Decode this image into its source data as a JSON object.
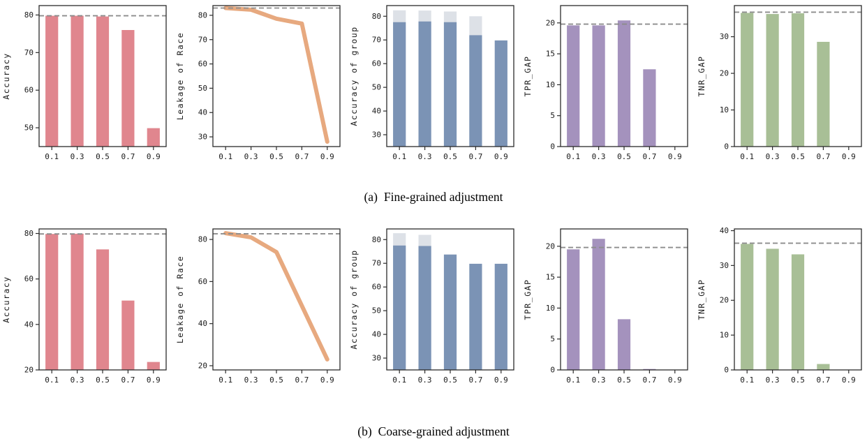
{
  "figure": {
    "background": "#ffffff",
    "spine_color": "#2b2b2b",
    "sections": [
      {
        "id": "a",
        "caption_label": "(a)",
        "caption_text": "Fine-grained adjustment"
      },
      {
        "id": "b",
        "caption_label": "(b)",
        "caption_text": "Coarse-grained adjustment"
      }
    ]
  },
  "chart_data": [
    {
      "id": "a-accuracy",
      "section": "a",
      "type": "bar",
      "title": "",
      "xlabel": "",
      "ylabel": "Accuracy",
      "categories": [
        "0.1",
        "0.3",
        "0.5",
        "0.7",
        "0.9"
      ],
      "values": [
        79.8,
        79.8,
        79.6,
        76.0,
        49.9
      ],
      "bar_color": "#e0868e",
      "ylim": [
        45,
        82.5
      ],
      "yticks": [
        50,
        60,
        70,
        80
      ],
      "ref_line": 79.8,
      "ref_line_color": "#8c8c8c",
      "grid": false,
      "legend": null
    },
    {
      "id": "a-leakage-of-race",
      "section": "a",
      "type": "line",
      "title": "",
      "xlabel": "",
      "ylabel": "Leakage of Race",
      "categories": [
        "0.1",
        "0.3",
        "0.5",
        "0.7",
        "0.9"
      ],
      "values": [
        83.0,
        82.3,
        78.6,
        76.6,
        28.0
      ],
      "line_color": "#e7a97f",
      "line_width": 6,
      "ylim": [
        26,
        84
      ],
      "yticks": [
        30,
        40,
        50,
        60,
        70,
        80
      ],
      "ref_line": 83.0,
      "ref_line_color": "#8c8c8c",
      "grid": false,
      "legend": null
    },
    {
      "id": "a-accuracy-of-group",
      "section": "a",
      "type": "bar",
      "title": "",
      "xlabel": "",
      "ylabel": "Accuracy of group",
      "categories": [
        "0.1",
        "0.3",
        "0.5",
        "0.7",
        "0.9"
      ],
      "series": [
        {
          "name": "series-1",
          "color": "#dde1e7",
          "values": [
            82.5,
            82.4,
            82.0,
            80.0,
            null
          ]
        },
        {
          "name": "series-2",
          "color": "#7b93b5",
          "values": [
            77.5,
            77.8,
            77.5,
            72.0,
            69.8
          ]
        }
      ],
      "ylim": [
        25,
        84.5
      ],
      "yticks": [
        30,
        40,
        50,
        60,
        70,
        80
      ],
      "ref_line": null,
      "grid": false,
      "legend": null
    },
    {
      "id": "a-tpr-gap",
      "section": "a",
      "type": "bar",
      "title": "",
      "xlabel": "",
      "ylabel": "TPR_GAP",
      "categories": [
        "0.1",
        "0.3",
        "0.5",
        "0.7",
        "0.9"
      ],
      "values": [
        19.6,
        19.6,
        20.4,
        12.5,
        0
      ],
      "bar_color": "#a492bd",
      "ylim": [
        0,
        22.8
      ],
      "yticks": [
        0,
        5,
        10,
        15,
        20
      ],
      "ref_line": 19.8,
      "ref_line_color": "#8c8c8c",
      "grid": false,
      "legend": null
    },
    {
      "id": "a-tnr-gap",
      "section": "a",
      "type": "bar",
      "title": "",
      "xlabel": "",
      "ylabel": "TNR_GAP",
      "categories": [
        "0.1",
        "0.3",
        "0.5",
        "0.7",
        "0.9"
      ],
      "values": [
        36.5,
        36.2,
        36.4,
        28.6,
        0
      ],
      "bar_color": "#a8bf96",
      "ylim": [
        0,
        38.5
      ],
      "yticks": [
        0,
        10,
        20,
        30
      ],
      "ref_line": 36.7,
      "ref_line_color": "#8c8c8c",
      "grid": false,
      "legend": null
    },
    {
      "id": "b-accuracy",
      "section": "b",
      "type": "bar",
      "title": "",
      "xlabel": "",
      "ylabel": "Accuracy",
      "categories": [
        "0.1",
        "0.3",
        "0.5",
        "0.7",
        "0.9"
      ],
      "values": [
        79.8,
        79.9,
        73.0,
        50.5,
        23.5
      ],
      "bar_color": "#e0868e",
      "ylim": [
        20,
        82
      ],
      "yticks": [
        20,
        40,
        60,
        80
      ],
      "ref_line": 79.8,
      "ref_line_color": "#8c8c8c",
      "grid": false,
      "legend": null
    },
    {
      "id": "b-leakage-of-race",
      "section": "b",
      "type": "line",
      "title": "",
      "xlabel": "",
      "ylabel": "Leakage of Race",
      "categories": [
        "0.1",
        "0.3",
        "0.5",
        "0.7",
        "0.9"
      ],
      "values": [
        83.0,
        81.0,
        74.0,
        48.5,
        23.0
      ],
      "line_color": "#e7a97f",
      "line_width": 6,
      "ylim": [
        18,
        85
      ],
      "yticks": [
        20,
        40,
        60,
        80
      ],
      "ref_line": 82.7,
      "ref_line_color": "#8c8c8c",
      "grid": false,
      "legend": null
    },
    {
      "id": "b-accuracy-of-group",
      "section": "b",
      "type": "bar",
      "title": "",
      "xlabel": "",
      "ylabel": "Accuracy of group",
      "categories": [
        "0.1",
        "0.3",
        "0.5",
        "0.7",
        "0.9"
      ],
      "series": [
        {
          "name": "series-1",
          "color": "#dde1e7",
          "values": [
            82.7,
            82.0,
            null,
            null,
            null
          ]
        },
        {
          "name": "series-2",
          "color": "#7b93b5",
          "values": [
            77.5,
            77.3,
            73.7,
            69.8,
            69.8
          ]
        }
      ],
      "ylim": [
        25,
        84.5
      ],
      "yticks": [
        30,
        40,
        50,
        60,
        70,
        80
      ],
      "ref_line": null,
      "grid": false,
      "legend": null
    },
    {
      "id": "b-tpr-gap",
      "section": "b",
      "type": "bar",
      "title": "",
      "xlabel": "",
      "ylabel": "TPR_GAP",
      "categories": [
        "0.1",
        "0.3",
        "0.5",
        "0.7",
        "0.9"
      ],
      "values": [
        19.5,
        21.2,
        8.2,
        0.15,
        0
      ],
      "bar_color": "#a492bd",
      "ylim": [
        0,
        22.8
      ],
      "yticks": [
        0,
        5,
        10,
        15,
        20
      ],
      "ref_line": 19.8,
      "ref_line_color": "#8c8c8c",
      "grid": false,
      "legend": null
    },
    {
      "id": "b-tnr-gap",
      "section": "b",
      "type": "bar",
      "title": "",
      "xlabel": "",
      "ylabel": "TNR_GAP",
      "categories": [
        "0.1",
        "0.3",
        "0.5",
        "0.7",
        "0.9"
      ],
      "values": [
        36.2,
        34.8,
        33.2,
        1.7,
        0
      ],
      "bar_color": "#a8bf96",
      "ylim": [
        0,
        40.5
      ],
      "yticks": [
        0,
        10,
        20,
        30,
        40
      ],
      "ref_line": 36.4,
      "ref_line_color": "#8c8c8c",
      "grid": false,
      "legend": null
    }
  ]
}
